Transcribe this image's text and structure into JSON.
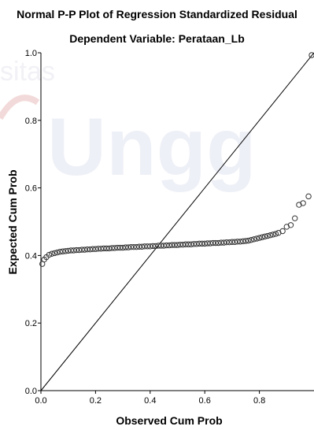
{
  "chart_data": {
    "type": "scatter",
    "title": "Normal P-P Plot of Regression Standardized Residual",
    "subtitle": "Dependent Variable: Perataan_Lb",
    "xlabel": "Observed Cum Prob",
    "ylabel": "Expected Cum Prob",
    "xlim": [
      0.0,
      1.0
    ],
    "ylim": [
      0.0,
      1.0
    ],
    "x_ticks": [
      "0.0",
      "0.2",
      "0.4",
      "0.6",
      "0.8"
    ],
    "y_ticks": [
      "0.0",
      "0.2",
      "0.4",
      "0.6",
      "0.8",
      "1.0"
    ],
    "grid": false,
    "reference_line": [
      [
        0,
        0
      ],
      [
        1,
        1
      ]
    ],
    "marker": "open-circle",
    "point_color": "#333333",
    "points": [
      [
        0.005,
        0.375
      ],
      [
        0.012,
        0.388
      ],
      [
        0.02,
        0.395
      ],
      [
        0.03,
        0.402
      ],
      [
        0.04,
        0.405
      ],
      [
        0.05,
        0.407
      ],
      [
        0.06,
        0.409
      ],
      [
        0.07,
        0.411
      ],
      [
        0.08,
        0.412
      ],
      [
        0.09,
        0.413
      ],
      [
        0.1,
        0.414
      ],
      [
        0.11,
        0.415
      ],
      [
        0.12,
        0.415
      ],
      [
        0.13,
        0.416
      ],
      [
        0.14,
        0.416
      ],
      [
        0.15,
        0.417
      ],
      [
        0.16,
        0.417
      ],
      [
        0.17,
        0.418
      ],
      [
        0.18,
        0.418
      ],
      [
        0.19,
        0.419
      ],
      [
        0.2,
        0.419
      ],
      [
        0.21,
        0.42
      ],
      [
        0.22,
        0.42
      ],
      [
        0.23,
        0.421
      ],
      [
        0.24,
        0.421
      ],
      [
        0.25,
        0.421
      ],
      [
        0.26,
        0.422
      ],
      [
        0.27,
        0.422
      ],
      [
        0.28,
        0.423
      ],
      [
        0.29,
        0.423
      ],
      [
        0.3,
        0.423
      ],
      [
        0.31,
        0.424
      ],
      [
        0.32,
        0.424
      ],
      [
        0.33,
        0.425
      ],
      [
        0.34,
        0.425
      ],
      [
        0.35,
        0.425
      ],
      [
        0.36,
        0.426
      ],
      [
        0.37,
        0.426
      ],
      [
        0.38,
        0.427
      ],
      [
        0.39,
        0.427
      ],
      [
        0.4,
        0.427
      ],
      [
        0.41,
        0.428
      ],
      [
        0.42,
        0.428
      ],
      [
        0.43,
        0.429
      ],
      [
        0.44,
        0.429
      ],
      [
        0.45,
        0.429
      ],
      [
        0.46,
        0.43
      ],
      [
        0.47,
        0.43
      ],
      [
        0.48,
        0.431
      ],
      [
        0.49,
        0.431
      ],
      [
        0.5,
        0.431
      ],
      [
        0.51,
        0.432
      ],
      [
        0.52,
        0.432
      ],
      [
        0.53,
        0.433
      ],
      [
        0.54,
        0.433
      ],
      [
        0.55,
        0.433
      ],
      [
        0.56,
        0.434
      ],
      [
        0.57,
        0.434
      ],
      [
        0.58,
        0.435
      ],
      [
        0.59,
        0.435
      ],
      [
        0.6,
        0.435
      ],
      [
        0.61,
        0.436
      ],
      [
        0.62,
        0.436
      ],
      [
        0.63,
        0.437
      ],
      [
        0.64,
        0.437
      ],
      [
        0.65,
        0.437
      ],
      [
        0.66,
        0.438
      ],
      [
        0.67,
        0.438
      ],
      [
        0.68,
        0.439
      ],
      [
        0.69,
        0.439
      ],
      [
        0.7,
        0.44
      ],
      [
        0.71,
        0.44
      ],
      [
        0.72,
        0.441
      ],
      [
        0.73,
        0.441
      ],
      [
        0.74,
        0.442
      ],
      [
        0.75,
        0.443
      ],
      [
        0.76,
        0.444
      ],
      [
        0.77,
        0.446
      ],
      [
        0.78,
        0.448
      ],
      [
        0.79,
        0.45
      ],
      [
        0.8,
        0.452
      ],
      [
        0.81,
        0.454
      ],
      [
        0.82,
        0.456
      ],
      [
        0.83,
        0.458
      ],
      [
        0.84,
        0.46
      ],
      [
        0.85,
        0.462
      ],
      [
        0.86,
        0.464
      ],
      [
        0.87,
        0.467
      ],
      [
        0.885,
        0.472
      ],
      [
        0.9,
        0.485
      ],
      [
        0.915,
        0.49
      ],
      [
        0.93,
        0.51
      ],
      [
        0.945,
        0.55
      ],
      [
        0.96,
        0.555
      ],
      [
        0.98,
        0.575
      ],
      [
        0.998,
        0.998
      ]
    ]
  }
}
